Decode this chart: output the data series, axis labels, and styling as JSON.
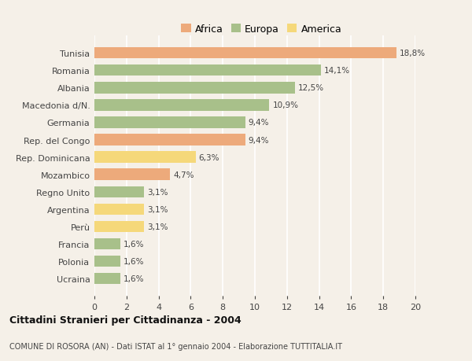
{
  "categories": [
    "Tunisia",
    "Romania",
    "Albania",
    "Macedonia d/N.",
    "Germania",
    "Rep. del Congo",
    "Rep. Dominicana",
    "Mozambico",
    "Regno Unito",
    "Argentina",
    "Perù",
    "Francia",
    "Polonia",
    "Ucraina"
  ],
  "values": [
    18.8,
    14.1,
    12.5,
    10.9,
    9.4,
    9.4,
    6.3,
    4.7,
    3.1,
    3.1,
    3.1,
    1.6,
    1.6,
    1.6
  ],
  "labels": [
    "18,8%",
    "14,1%",
    "12,5%",
    "10,9%",
    "9,4%",
    "9,4%",
    "6,3%",
    "4,7%",
    "3,1%",
    "3,1%",
    "3,1%",
    "1,6%",
    "1,6%",
    "1,6%"
  ],
  "colors": [
    "#EDAA7B",
    "#A8C08A",
    "#A8C08A",
    "#A8C08A",
    "#A8C08A",
    "#EDAA7B",
    "#F5D87A",
    "#EDAA7B",
    "#A8C08A",
    "#F5D87A",
    "#F5D87A",
    "#A8C08A",
    "#A8C08A",
    "#A8C08A"
  ],
  "legend_labels": [
    "Africa",
    "Europa",
    "America"
  ],
  "legend_colors": [
    "#EDAA7B",
    "#A8C08A",
    "#F5D87A"
  ],
  "title": "Cittadini Stranieri per Cittadinanza - 2004",
  "subtitle": "COMUNE DI ROSORA (AN) - Dati ISTAT al 1° gennaio 2004 - Elaborazione TUTTITALIA.IT",
  "xlim": [
    0,
    20
  ],
  "xticks": [
    0,
    2,
    4,
    6,
    8,
    10,
    12,
    14,
    16,
    18,
    20
  ],
  "background_color": "#F5F0E8",
  "grid_color": "#FFFFFF"
}
